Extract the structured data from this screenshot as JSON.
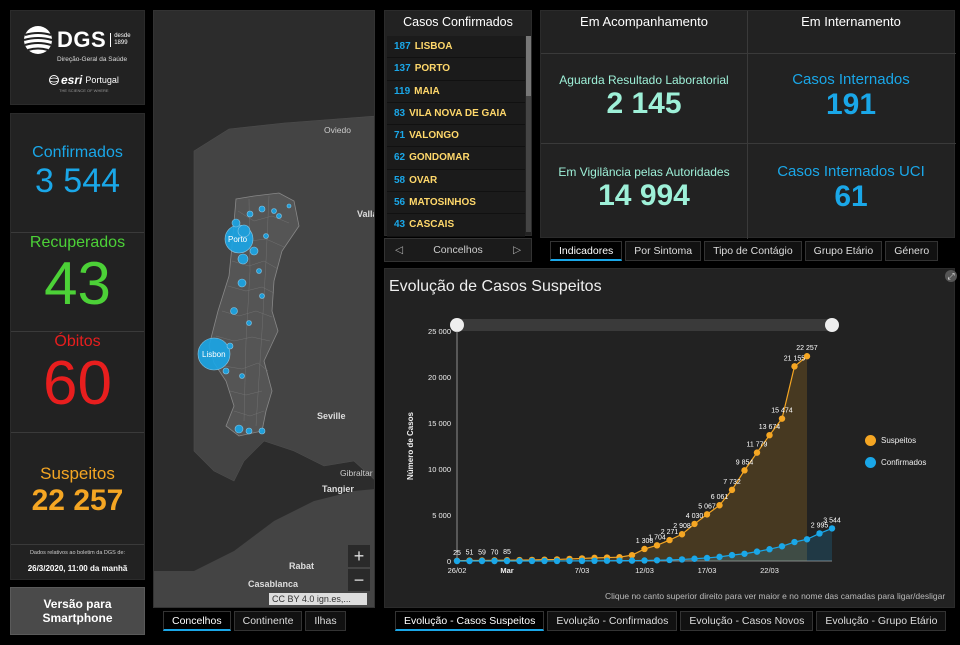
{
  "logo": {
    "brand": "DGS",
    "since": "desde",
    "since_year": "1899",
    "subtitle": "Direção-Geral da Saúde",
    "partner_name": "esri",
    "partner_country": "Portugal",
    "partner_tagline": "THE SCIENCE OF WHERE"
  },
  "stats": {
    "confirmed_label": "Confirmados",
    "confirmed_value": "3 544",
    "recovered_label": "Recuperados",
    "recovered_value": "43",
    "deaths_label": "Óbitos",
    "deaths_value": "60",
    "suspected_label": "Suspeitos",
    "suspected_value": "22 257",
    "note_line1": "Dados relativos ao boletim da DGS de:",
    "note_line2": "26/3/2020, 11:00 da manhã",
    "colors": {
      "confirmed": "#1aa7e8",
      "recovered": "#4cd137",
      "deaths": "#e81e1e",
      "suspected": "#f5a623"
    }
  },
  "smartphone": {
    "line1": "Versão para",
    "line2": "Smartphone"
  },
  "map": {
    "labels": {
      "oviedo": "Oviedo",
      "valla": "Valla",
      "porto": "Porto",
      "lisbon": "Lisbon",
      "seville": "Seville",
      "gibraltar": "Gibraltar",
      "tangier": "Tangier",
      "rabat": "Rabat",
      "casablanca": "Casablanca"
    },
    "zoom_in": "+",
    "zoom_out": "−",
    "attribution": "CC BY 4.0 ign.es,...",
    "tabs": [
      "Concelhos",
      "Continente",
      "Ilhas"
    ]
  },
  "cases_list": {
    "title": "Casos Confirmados",
    "items": [
      {
        "count": "187",
        "name": "LISBOA"
      },
      {
        "count": "137",
        "name": "PORTO"
      },
      {
        "count": "119",
        "name": "MAIA"
      },
      {
        "count": "83",
        "name": "VILA NOVA DE GAIA"
      },
      {
        "count": "71",
        "name": "VALONGO"
      },
      {
        "count": "62",
        "name": "GONDOMAR"
      },
      {
        "count": "58",
        "name": "OVAR"
      },
      {
        "count": "56",
        "name": "MATOSINHOS"
      },
      {
        "count": "43",
        "name": "CASCAIS"
      }
    ],
    "nav_label": "Concelhos",
    "nav_prev": "◁",
    "nav_next": "▷"
  },
  "indicators": {
    "col1_title": "Em Acompanhamento",
    "col2_title": "Em Internamento",
    "awaiting_label": "Aguarda Resultado Laboratorial",
    "awaiting_value": "2 145",
    "surveillance_label": "Em Vigilância pelas Autoridades",
    "surveillance_value": "14 994",
    "hospitalized_label": "Casos Internados",
    "hospitalized_value": "191",
    "icu_label": "Casos Internados UCI",
    "icu_value": "61",
    "tabs": [
      "Indicadores",
      "Por Sintoma",
      "Tipo de Contágio",
      "Grupo Etário",
      "Género"
    ],
    "colors": {
      "teal": "#9ef0d8",
      "blue": "#1aa7e8"
    }
  },
  "chart": {
    "title": "Evolução de Casos Suspeitos",
    "note": "Clique no canto superior direito para ver maior e no nome das camadas para ligar/desligar",
    "tabs": [
      "Evolução - Casos Suspeitos",
      "Evolução - Confirmados",
      "Evolução - Casos Novos",
      "Evolução - Grupo Etário"
    ]
  },
  "chart_data": {
    "type": "line",
    "title": "Evolução de Casos Suspeitos",
    "ylabel": "Número de Casos",
    "xlabel": "",
    "ylim": [
      0,
      25000
    ],
    "yticks": [
      "0",
      "5 000",
      "10 000",
      "15 000",
      "20 000",
      "25 000"
    ],
    "xticks": [
      {
        "day": 1,
        "label": "26/02"
      },
      {
        "day": 5,
        "label": "Mar"
      },
      {
        "day": 11,
        "label": "7/03"
      },
      {
        "day": 16,
        "label": "12/03"
      },
      {
        "day": 21,
        "label": "17/03"
      },
      {
        "day": 26,
        "label": "22/03"
      }
    ],
    "legend": "right",
    "grid": false,
    "series": [
      {
        "name": "Suspeitos",
        "color": "#f5a623",
        "values": [
          25,
          51,
          59,
          70,
          85,
          101,
          117,
          147,
          169,
          224,
          281,
          339,
          375,
          416,
          637,
          1308,
          1704,
          2271,
          2908,
          4030,
          5067,
          6061,
          7732,
          9854,
          11779,
          13674,
          15474,
          21155,
          22257
        ],
        "labels": [
          "25",
          "51",
          "59",
          "70",
          "85",
          "",
          "",
          "",
          "",
          "",
          "",
          "",
          "",
          "",
          "",
          "1 308",
          "1 704",
          "2 271",
          "2 908",
          "4 030",
          "5 067",
          "6 061",
          "7 732",
          "9 854",
          "11 779",
          "13 674",
          "15 474",
          "21 155",
          "22 257"
        ]
      },
      {
        "name": "Confirmados",
        "color": "#1aa7e8",
        "values": [
          0,
          0,
          0,
          0,
          0,
          0,
          2,
          4,
          6,
          9,
          13,
          21,
          30,
          39,
          41,
          59,
          78,
          112,
          169,
          245,
          331,
          448,
          642,
          785,
          1020,
          1280,
          1600,
          2060,
          2362,
          2995,
          3544
        ],
        "labels": [
          "",
          "",
          "",
          "",
          "",
          "",
          "",
          "",
          "",
          "",
          "",
          "",
          "",
          "",
          "",
          "",
          "",
          "",
          "",
          "",
          "",
          "",
          "",
          "",
          "",
          "",
          "",
          "",
          "",
          "2 995",
          "3 544"
        ]
      }
    ]
  }
}
